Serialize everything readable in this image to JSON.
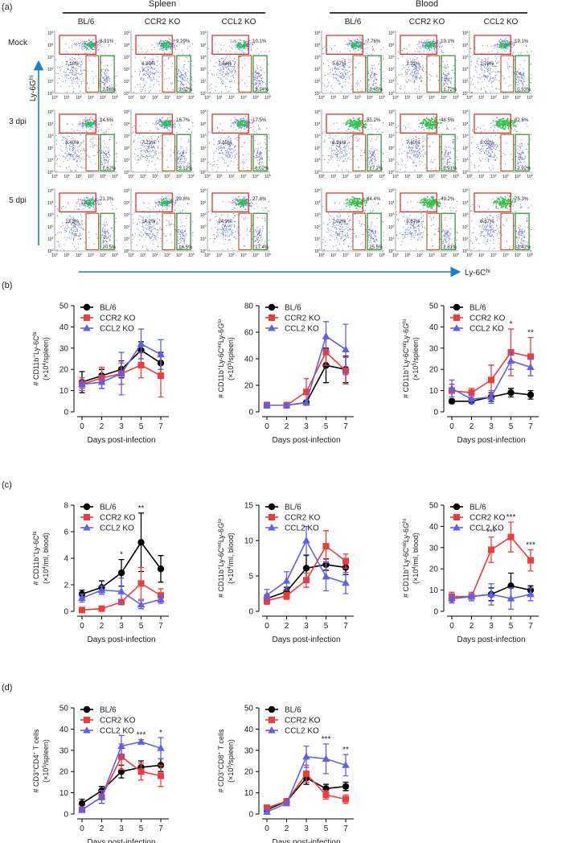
{
  "flow": {
    "panel": "(a)",
    "row_labels": [
      "Mock",
      "3 dpi",
      "5 dpi"
    ],
    "y_label": [
      {
        "text": "Ly-6G"
      },
      {
        "text": "hi",
        "sup": true
      }
    ],
    "x_label": [
      {
        "text": "Ly-6C"
      },
      {
        "text": "hi",
        "sup": true
      }
    ],
    "axis_ticks": [
      [
        {
          "text": "10"
        },
        {
          "text": "0",
          "sup": true
        }
      ],
      [
        {
          "text": "10"
        },
        {
          "text": "1",
          "sup": true
        }
      ],
      [
        {
          "text": "10"
        },
        {
          "text": "2",
          "sup": true
        }
      ],
      [
        {
          "text": "10"
        },
        {
          "text": "3",
          "sup": true
        }
      ],
      [
        {
          "text": "10"
        },
        {
          "text": "4",
          "sup": true
        }
      ],
      [
        {
          "text": "10"
        },
        {
          "text": "5",
          "sup": true
        }
      ]
    ],
    "groups": [
      {
        "name": "Spleen",
        "columns": [
          "BL/6",
          "CCR2 KO",
          "CCL2 KO"
        ],
        "gates": [
          [
            [
              "8.91%",
              "7.18%",
              "3.98%"
            ],
            [
              "9.29%",
              "6.90%",
              "3.02%"
            ],
            [
              "10.1%",
              "7.84%",
              "3.34%"
            ]
          ],
          [
            [
              "14.6%",
              "8.40%",
              "7.62%"
            ],
            [
              "16.7%",
              "7.23%",
              "5.12%"
            ],
            [
              "17.5%",
              "9.65%",
              "6.02%"
            ]
          ],
          [
            [
              "21.3%",
              "12.3%",
              "20.5%"
            ],
            [
              "29.8%",
              "14.2%",
              "16.5%"
            ],
            [
              "27.8%",
              "14.9%",
              "17.4%"
            ]
          ]
        ]
      },
      {
        "name": "Blood",
        "columns": [
          "BL/6",
          "CCR2 KO",
          "CCL2 KO"
        ],
        "gates": [
          [
            [
              "7.76%",
              "5.67%",
              "3.45%"
            ],
            [
              "19.1%",
              "3.31%",
              "1.72%"
            ],
            [
              "19.1%",
              "2.78%",
              "0.93%"
            ]
          ],
          [
            [
              "53.2%",
              "6.91%",
              "27.2%"
            ],
            [
              "48.5%",
              "7.40%",
              "5.91%"
            ],
            [
              "62.6%",
              "8.02%",
              "2.92%"
            ]
          ],
          [
            [
              "44.4%",
              "7.02%",
              "25.5%"
            ],
            [
              "49.2%",
              "5.87%",
              "2.81%"
            ],
            [
              "75.3%",
              "6.87%",
              "3.42%"
            ]
          ]
        ]
      }
    ]
  },
  "chart_data": [
    {
      "type": "line",
      "panel": "(b)",
      "legend": "top-left",
      "x_label": "Days post-infection",
      "categories": [
        0,
        2,
        3,
        5,
        7
      ],
      "y_label": [
        [
          {
            "text": "# CD11b"
          },
          {
            "text": "+",
            "sup": true
          },
          {
            "text": "Ly-6C"
          },
          {
            "text": "hi",
            "sup": true
          }
        ],
        [
          {
            "text": "(×10"
          },
          {
            "text": "4",
            "sup": true
          },
          {
            "text": "/spleen)"
          }
        ]
      ],
      "ylim": [
        0,
        50
      ],
      "yticks": [
        0,
        10,
        20,
        30,
        40,
        50
      ],
      "series": [
        {
          "name": "BL/6",
          "color": "#000000",
          "marker": "circle",
          "values": [
            14,
            17,
            20,
            29,
            23
          ],
          "errors": [
            5,
            3,
            4,
            4,
            5
          ]
        },
        {
          "name": "CCR2 KO",
          "color": "#ee3b3b",
          "marker": "square",
          "values": [
            13,
            16,
            18,
            22,
            17
          ],
          "errors": [
            3,
            5,
            5,
            6,
            10
          ]
        },
        {
          "name": "CCL2 KO",
          "color": "#6060e6",
          "marker": "triangle",
          "values": [
            13,
            14,
            18,
            32,
            27
          ],
          "errors": [
            2,
            3,
            10,
            7,
            7
          ]
        }
      ],
      "annotations": []
    },
    {
      "type": "line",
      "legend": "top-left",
      "x_label": "Days post-infection",
      "categories": [
        0,
        2,
        3,
        5,
        7
      ],
      "y_label": [
        [
          {
            "text": "# CD11b"
          },
          {
            "text": "+",
            "sup": true
          },
          {
            "text": "Ly-6C"
          },
          {
            "text": "int",
            "sup": true
          },
          {
            "text": "Ly-6G"
          },
          {
            "text": "lo",
            "sup": true
          }
        ],
        [
          {
            "text": "(×10"
          },
          {
            "text": "5",
            "sup": true
          },
          {
            "text": "/spleen)"
          }
        ]
      ],
      "ylim": [
        0,
        80
      ],
      "yticks": [
        0,
        20,
        40,
        60,
        80
      ],
      "series": [
        {
          "name": "BL/6",
          "color": "#000000",
          "marker": "circle",
          "values": [
            5,
            5,
            7,
            35,
            32
          ],
          "errors": [
            2,
            1,
            2,
            13,
            10
          ]
        },
        {
          "name": "CCR2 KO",
          "color": "#ee3b3b",
          "marker": "square",
          "values": [
            5,
            5,
            15,
            45,
            31
          ],
          "errors": [
            2,
            2,
            10,
            10,
            10
          ]
        },
        {
          "name": "CCL2 KO",
          "color": "#6060e6",
          "marker": "triangle",
          "values": [
            5,
            5,
            7,
            57,
            47
          ],
          "errors": [
            2,
            1,
            2,
            11,
            19
          ]
        }
      ],
      "annotations": []
    },
    {
      "type": "line",
      "legend": "top-left",
      "x_label": "Days post-infection",
      "categories": [
        0,
        2,
        3,
        5,
        7
      ],
      "y_label": [
        [
          {
            "text": "# CD11b"
          },
          {
            "text": "+",
            "sup": true
          },
          {
            "text": "Ly-6C"
          },
          {
            "text": "int",
            "sup": true
          },
          {
            "text": "Ly-6G"
          },
          {
            "text": "hi",
            "sup": true
          }
        ],
        [
          {
            "text": "(×10"
          },
          {
            "text": "5",
            "sup": true
          },
          {
            "text": "/spleen)"
          }
        ]
      ],
      "ylim": [
        0,
        50
      ],
      "yticks": [
        0,
        10,
        20,
        30,
        40,
        50
      ],
      "series": [
        {
          "name": "BL/6",
          "color": "#000000",
          "marker": "circle",
          "values": [
            5,
            5,
            7,
            9,
            8
          ],
          "errors": [
            1,
            1,
            2,
            2,
            2
          ]
        },
        {
          "name": "CCR2 KO",
          "color": "#ee3b3b",
          "marker": "square",
          "values": [
            10,
            9,
            15,
            28,
            26
          ],
          "errors": [
            3,
            2,
            7,
            11,
            9
          ]
        },
        {
          "name": "CCL2 KO",
          "color": "#6060e6",
          "marker": "triangle",
          "values": [
            11,
            6,
            7,
            24,
            21
          ],
          "errors": [
            4,
            2,
            3,
            4,
            4
          ]
        }
      ],
      "annotations": [
        {
          "x": 5,
          "text": "*"
        },
        {
          "x": 7,
          "text": "**"
        }
      ]
    },
    {
      "type": "line",
      "panel": "(c)",
      "legend": "top-left",
      "x_label": "Days post-infection",
      "categories": [
        0,
        2,
        3,
        5,
        7
      ],
      "y_label": [
        [
          {
            "text": "# CD11b"
          },
          {
            "text": "+",
            "sup": true
          },
          {
            "text": "Ly-6C"
          },
          {
            "text": "hi",
            "sup": true
          }
        ],
        [
          {
            "text": "(×10"
          },
          {
            "text": "4",
            "sup": true
          },
          {
            "text": "/ml, blood)"
          }
        ]
      ],
      "ylim": [
        0,
        8
      ],
      "yticks": [
        0,
        2,
        4,
        6,
        8
      ],
      "series": [
        {
          "name": "BL/6",
          "color": "#000000",
          "marker": "circle",
          "values": [
            1.3,
            1.8,
            2.9,
            5.2,
            3.2
          ],
          "errors": [
            0.3,
            0.5,
            1,
            2.2,
            1
          ]
        },
        {
          "name": "CCR2 KO",
          "color": "#ee3b3b",
          "marker": "square",
          "values": [
            0.1,
            0.2,
            0.7,
            2.1,
            1.2
          ],
          "errors": [
            0.05,
            0.1,
            0.2,
            1.2,
            0.5
          ]
        },
        {
          "name": "CCL2 KO",
          "color": "#6060e6",
          "marker": "triangle",
          "values": [
            1,
            1.6,
            1.5,
            0.5,
            0.9
          ],
          "errors": [
            0.3,
            0.3,
            1,
            0.3,
            0.3
          ]
        }
      ],
      "annotations": [
        {
          "x": 3,
          "text": "*"
        },
        {
          "x": 5,
          "text": "**"
        }
      ]
    },
    {
      "type": "line",
      "legend": "top-left",
      "x_label": "Days post-infection",
      "categories": [
        0,
        2,
        3,
        5,
        7
      ],
      "y_label": [
        [
          {
            "text": "# CD11b"
          },
          {
            "text": "+",
            "sup": true
          },
          {
            "text": "Ly-6C"
          },
          {
            "text": "int",
            "sup": true
          },
          {
            "text": "Ly-6G"
          },
          {
            "text": "lo",
            "sup": true
          }
        ],
        [
          {
            "text": "(×10"
          },
          {
            "text": "4",
            "sup": true
          },
          {
            "text": "/ml, blood)"
          }
        ]
      ],
      "ylim": [
        0,
        15
      ],
      "yticks": [
        0,
        5,
        10,
        15
      ],
      "series": [
        {
          "name": "BL/6",
          "color": "#000000",
          "marker": "circle",
          "values": [
            1.8,
            2.8,
            6.1,
            6.6,
            6.2
          ],
          "errors": [
            0.5,
            0.6,
            1.8,
            0.8,
            1
          ]
        },
        {
          "name": "CCR2 KO",
          "color": "#ee3b3b",
          "marker": "square",
          "values": [
            1.5,
            2.2,
            4.4,
            9.2,
            7.1
          ],
          "errors": [
            0.5,
            0.5,
            1,
            2.2,
            1
          ]
        },
        {
          "name": "CCL2 KO",
          "color": "#6060e6",
          "marker": "triangle",
          "values": [
            2.3,
            4.3,
            10,
            4.9,
            4
          ],
          "errors": [
            0.8,
            1.3,
            2,
            2,
            1.5
          ]
        }
      ],
      "annotations": []
    },
    {
      "type": "line",
      "legend": "top-left",
      "x_label": "Days post-infection",
      "categories": [
        0,
        2,
        3,
        5,
        7
      ],
      "y_label": [
        [
          {
            "text": "# CD11b"
          },
          {
            "text": "+",
            "sup": true
          },
          {
            "text": "Ly-6C"
          },
          {
            "text": "int",
            "sup": true
          },
          {
            "text": "Ly-6G"
          },
          {
            "text": "hi",
            "sup": true
          }
        ],
        [
          {
            "text": "(×10"
          },
          {
            "text": "4",
            "sup": true
          },
          {
            "text": "/ml, blood)"
          }
        ]
      ],
      "ylim": [
        0,
        50
      ],
      "yticks": [
        0,
        10,
        20,
        30,
        40,
        50
      ],
      "series": [
        {
          "name": "BL/6",
          "color": "#000000",
          "marker": "circle",
          "values": [
            6,
            7,
            8,
            12,
            10
          ],
          "errors": [
            2,
            1,
            3,
            6,
            2
          ]
        },
        {
          "name": "CCR2 KO",
          "color": "#ee3b3b",
          "marker": "square",
          "values": [
            7,
            7,
            29,
            35,
            24
          ],
          "errors": [
            2,
            1,
            6,
            7,
            5
          ]
        },
        {
          "name": "CCL2 KO",
          "color": "#6060e6",
          "marker": "triangle",
          "values": [
            6,
            7,
            8,
            6,
            8
          ],
          "errors": [
            2,
            2,
            5,
            5,
            3
          ]
        }
      ],
      "annotations": [
        {
          "x": 3,
          "text": "***"
        },
        {
          "x": 5,
          "text": "***"
        },
        {
          "x": 7,
          "text": "***"
        }
      ]
    },
    {
      "type": "line",
      "panel": "(d)",
      "legend": "top-left",
      "x_label": "Days post-infection",
      "categories": [
        0,
        2,
        3,
        5,
        7
      ],
      "y_label": [
        [
          {
            "text": "# CD3"
          },
          {
            "text": "+",
            "sup": true
          },
          {
            "text": "CD4"
          },
          {
            "text": "+",
            "sup": true
          },
          {
            "text": " T cells"
          }
        ],
        [
          {
            "text": "(×10"
          },
          {
            "text": "5",
            "sup": true
          },
          {
            "text": "/spleen)"
          }
        ]
      ],
      "ylim": [
        0,
        50
      ],
      "yticks": [
        0,
        10,
        20,
        30,
        40,
        50
      ],
      "series": [
        {
          "name": "BL/6",
          "color": "#000000",
          "marker": "circle",
          "values": [
            5,
            11,
            20,
            22,
            23
          ],
          "errors": [
            2,
            2,
            3,
            3,
            3
          ]
        },
        {
          "name": "CCR2 KO",
          "color": "#ee3b3b",
          "marker": "square",
          "values": [
            2,
            8,
            27,
            20,
            18
          ],
          "errors": [
            1,
            3,
            6,
            4,
            5
          ]
        },
        {
          "name": "CCL2 KO",
          "color": "#6060e6",
          "marker": "triangle",
          "values": [
            2,
            8,
            32,
            34,
            31
          ],
          "errors": [
            1,
            3,
            5,
            1,
            5
          ]
        }
      ],
      "annotations": [
        {
          "x": 5,
          "text": "***"
        },
        {
          "x": 7,
          "text": "*"
        }
      ]
    },
    {
      "type": "line",
      "legend": "top-left",
      "x_label": "Days post-infection",
      "categories": [
        0,
        2,
        3,
        5,
        7
      ],
      "y_label": [
        [
          {
            "text": "# CD3"
          },
          {
            "text": "+",
            "sup": true
          },
          {
            "text": "CD8"
          },
          {
            "text": "+",
            "sup": true
          },
          {
            "text": " T cells"
          }
        ],
        [
          {
            "text": "(×10"
          },
          {
            "text": "5",
            "sup": true
          },
          {
            "text": "/spleen)"
          }
        ]
      ],
      "ylim": [
        0,
        50
      ],
      "yticks": [
        0,
        10,
        20,
        30,
        40,
        50
      ],
      "series": [
        {
          "name": "BL/6",
          "color": "#000000",
          "marker": "circle",
          "values": [
            2,
            6,
            17,
            12,
            13
          ],
          "errors": [
            1,
            1,
            3,
            2,
            2
          ]
        },
        {
          "name": "CCR2 KO",
          "color": "#ee3b3b",
          "marker": "square",
          "values": [
            3,
            6,
            19,
            9,
            7
          ],
          "errors": [
            1,
            1,
            4,
            2,
            2
          ]
        },
        {
          "name": "CCL2 KO",
          "color": "#6060e6",
          "marker": "triangle",
          "values": [
            1,
            5,
            27,
            26,
            23
          ],
          "errors": [
            1,
            1,
            5,
            7,
            5
          ]
        }
      ],
      "annotations": [
        {
          "x": 5,
          "text": "***"
        },
        {
          "x": 7,
          "text": "**"
        }
      ]
    }
  ]
}
